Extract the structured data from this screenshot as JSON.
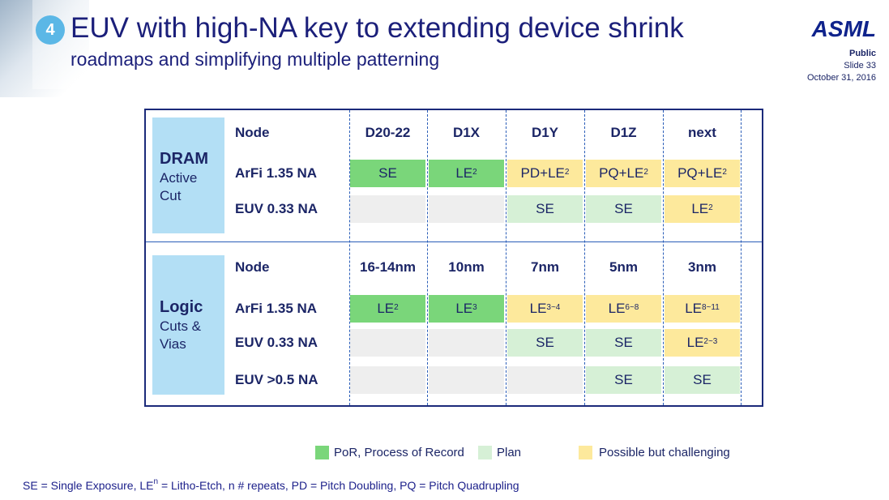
{
  "header": {
    "number": "4",
    "title": "EUV with high-NA key to extending device shrink",
    "subtitle": "roadmaps and simplifying multiple patterning",
    "logo": "ASML",
    "classification": "Public",
    "slide": "Slide 33",
    "date": "October 31, 2016"
  },
  "sections": [
    {
      "name": "DRAM",
      "detail": [
        "Active",
        "Cut"
      ],
      "node_label": "Node",
      "nodes": [
        "D20-22",
        "D1X",
        "D1Y",
        "D1Z",
        "next"
      ],
      "rows": [
        {
          "label": "ArFi 1.35 NA",
          "cells": [
            {
              "text": "SE",
              "color": "#7ad67a"
            },
            {
              "text": "LE",
              "sup": "2",
              "color": "#7ad67a"
            },
            {
              "text": "PD+LE",
              "sup": "2",
              "color": "#fde99c"
            },
            {
              "text": "PQ+LE",
              "sup": "2",
              "color": "#fde99c"
            },
            {
              "text": "PQ+LE",
              "sup": "2",
              "color": "#fde99c"
            }
          ]
        },
        {
          "label": "EUV 0.33 NA",
          "cells": [
            {
              "color": "#eeeeee"
            },
            {
              "color": "#eeeeee"
            },
            {
              "text": "SE",
              "color": "#d6f0d6"
            },
            {
              "text": "SE",
              "color": "#d6f0d6"
            },
            {
              "text": "LE",
              "sup": "2",
              "color": "#fde99c"
            }
          ]
        }
      ]
    },
    {
      "name": "Logic",
      "detail": [
        "Cuts &",
        "Vias"
      ],
      "node_label": "Node",
      "nodes": [
        "16-14nm",
        "10nm",
        "7nm",
        "5nm",
        "3nm"
      ],
      "rows": [
        {
          "label": "ArFi 1.35 NA",
          "cells": [
            {
              "text": "LE",
              "sup": "2",
              "color": "#7ad67a"
            },
            {
              "text": "LE",
              "sup": "3",
              "color": "#7ad67a"
            },
            {
              "text": "LE",
              "sup": "3~4",
              "color": "#fde99c"
            },
            {
              "text": "LE",
              "sup": "6~8",
              "color": "#fde99c"
            },
            {
              "text": "LE",
              "sup": "8~11",
              "color": "#fde99c"
            }
          ]
        },
        {
          "label": "EUV 0.33 NA",
          "cells": [
            {
              "color": "#eeeeee"
            },
            {
              "color": "#eeeeee"
            },
            {
              "text": "SE",
              "color": "#d6f0d6"
            },
            {
              "text": "SE",
              "color": "#d6f0d6"
            },
            {
              "text": "LE",
              "sup": "2~3",
              "color": "#fde99c"
            }
          ]
        },
        {
          "label": "EUV >0.5 NA",
          "cells": [
            {
              "color": "#eeeeee"
            },
            {
              "color": "#eeeeee"
            },
            {
              "color": "#eeeeee"
            },
            {
              "text": "SE",
              "color": "#d6f0d6"
            },
            {
              "text": "SE",
              "color": "#d6f0d6"
            }
          ]
        }
      ]
    }
  ],
  "legend": [
    {
      "label": "PoR, Process of Record",
      "color": "#7ad67a"
    },
    {
      "label": "Plan",
      "color": "#d6f0d6"
    },
    {
      "label": "Possible but challenging",
      "color": "#fde99c"
    }
  ],
  "footnote": {
    "before": "SE = Single Exposure, LE",
    "sup": "n",
    "after": " = Litho-Etch, n  # repeats, PD = Pitch Doubling, PQ = Pitch Quadrupling"
  }
}
